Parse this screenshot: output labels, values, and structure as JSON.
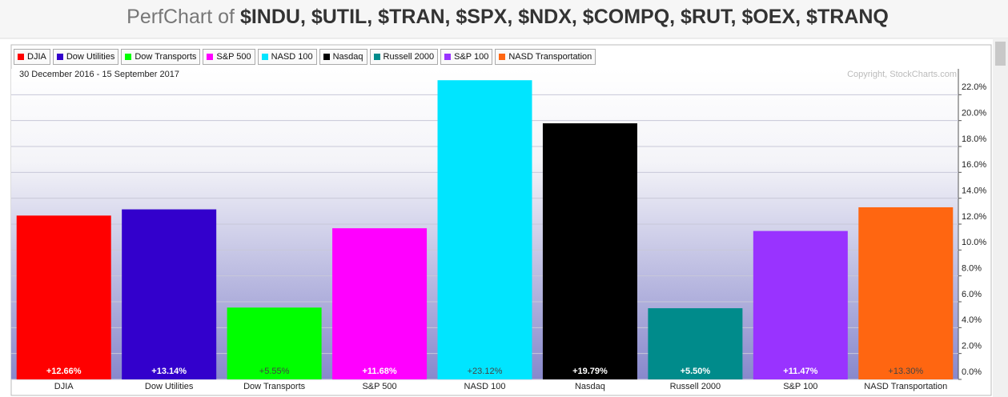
{
  "chart_data": {
    "type": "bar",
    "title_prefix": "PerfChart of",
    "title_symbols": "$INDU, $UTIL, $TRAN, $SPX, $NDX, $COMPQ, $RUT, $OEX, $TRANQ",
    "date_range": "30 December 2016 - 15 September 2017",
    "copyright": "Copyright, StockCharts.com",
    "categories": [
      "DJIA",
      "Dow Utilities",
      "Dow Transports",
      "S&P 500",
      "NASD 100",
      "Nasdaq",
      "Russell 2000",
      "S&P 100",
      "NASD Transportation"
    ],
    "values": [
      12.66,
      13.14,
      5.55,
      11.68,
      23.12,
      19.79,
      5.5,
      11.47,
      13.3
    ],
    "value_labels": [
      "+12.66%",
      "+13.14%",
      "+5.55%",
      "+11.68%",
      "+23.12%",
      "+19.79%",
      "+5.50%",
      "+11.47%",
      "+13.30%"
    ],
    "colors": [
      "#ff0000",
      "#3300cc",
      "#00ff00",
      "#ff00ff",
      "#00e5ff",
      "#000000",
      "#008b8b",
      "#9933ff",
      "#ff6611"
    ],
    "ylim": [
      0,
      24
    ],
    "yticks": [
      {
        "value": 0,
        "label": "0.0%"
      },
      {
        "value": 2,
        "label": "2.0%"
      },
      {
        "value": 4,
        "label": "4.0%"
      },
      {
        "value": 6,
        "label": "6.0%"
      },
      {
        "value": 8,
        "label": "8.0%"
      },
      {
        "value": 10,
        "label": "10.0%"
      },
      {
        "value": 12,
        "label": "12.0%"
      },
      {
        "value": 14,
        "label": "14.0%"
      },
      {
        "value": 16,
        "label": "16.0%"
      },
      {
        "value": 18,
        "label": "18.0%"
      },
      {
        "value": 20,
        "label": "20.0%"
      },
      {
        "value": 22,
        "label": "22.0%"
      }
    ],
    "grid": true
  }
}
